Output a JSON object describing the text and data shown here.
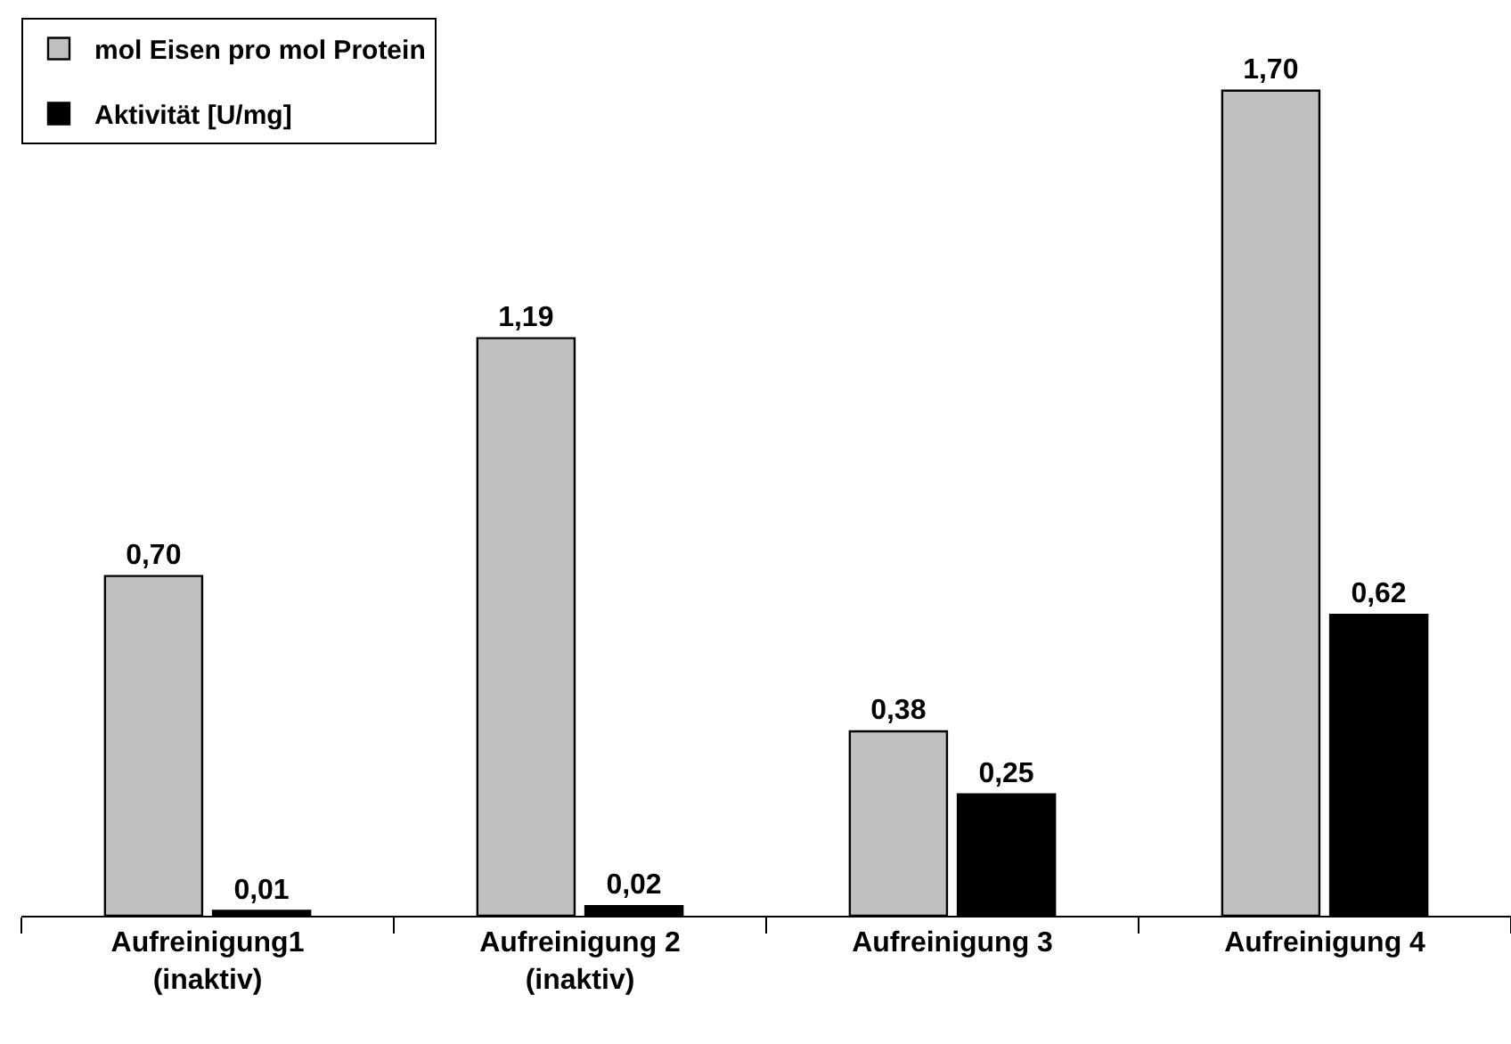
{
  "chart_data": {
    "type": "bar",
    "categories": [
      "Aufreinigung1\n(inaktiv)",
      "Aufreinigung 2\n(inaktiv)",
      "Aufreinigung 3",
      "Aufreinigung 4"
    ],
    "series": [
      {
        "name": "mol Eisen pro mol Protein",
        "color": "#c0c0c0",
        "values": [
          0.7,
          1.19,
          0.38,
          1.7
        ],
        "value_labels": [
          "0,70",
          "1,19",
          "0,38",
          "1,70"
        ]
      },
      {
        "name": "Aktivität [U/mg]",
        "color": "#000000",
        "values": [
          0.01,
          0.02,
          0.25,
          0.62
        ],
        "value_labels": [
          "0,01",
          "0,02",
          "0,25",
          "0,62"
        ]
      }
    ],
    "ylim": [
      0,
      1.85
    ],
    "tick_labels": "x",
    "legend": "top left"
  }
}
